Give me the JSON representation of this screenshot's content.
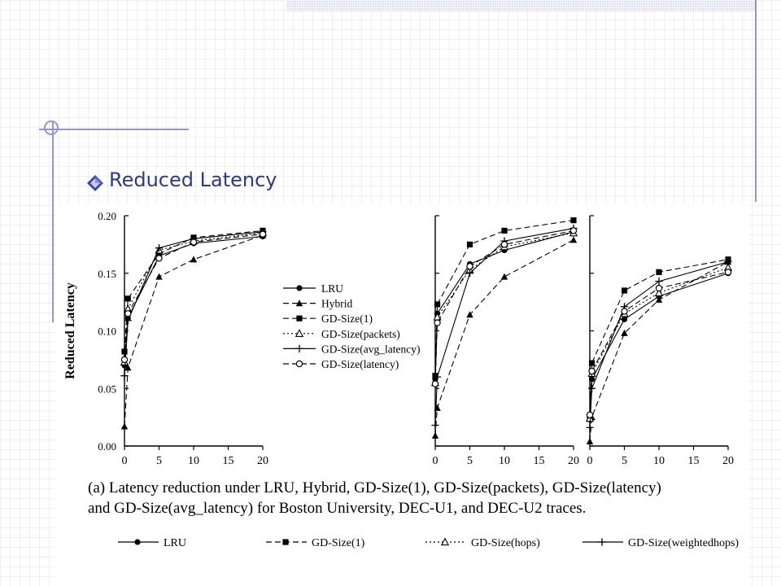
{
  "slide": {
    "title": "Reduced Latency"
  },
  "caption": {
    "line1": "(a) Latency reduction under LRU, Hybrid, GD-Size(1), GD-Size(packets), GD-Size(latency)",
    "line2": "and GD-Size(avg_latency) for Boston University, DEC-U1, and DEC-U2 traces."
  },
  "legend_main": [
    {
      "name": "LRU",
      "marker": "filled-circle",
      "dash": "solid"
    },
    {
      "name": "Hybrid",
      "marker": "filled-triangle",
      "dash": "dashed"
    },
    {
      "name": "GD-Size(1)",
      "marker": "filled-square",
      "dash": "dashed"
    },
    {
      "name": "GD-Size(packets)",
      "marker": "open-triangle",
      "dash": "dotted"
    },
    {
      "name": "GD-Size(avg_latency)",
      "marker": "plus",
      "dash": "solid"
    },
    {
      "name": "GD-Size(latency)",
      "marker": "open-circle",
      "dash": "dashed"
    }
  ],
  "legend_bottom": [
    {
      "name": "LRU",
      "marker": "filled-circle",
      "dash": "solid"
    },
    {
      "name": "GD-Size(1)",
      "marker": "filled-square",
      "dash": "dashed"
    },
    {
      "name": "GD-Size(hops)",
      "marker": "open-triangle",
      "dash": "dotted"
    },
    {
      "name": "GD-Size(weightedhops)",
      "marker": "plus",
      "dash": "solid"
    }
  ],
  "chart_data": [
    {
      "type": "line",
      "ylabel": "Reduced Latency",
      "xlabel": "",
      "xlim": [
        0,
        20
      ],
      "ylim": [
        0,
        0.2
      ],
      "xticks": [
        "0",
        "5",
        "10",
        "15",
        "20"
      ],
      "yticks": [
        "0.00",
        "0.05",
        "0.10",
        "0.15",
        "0.20"
      ],
      "series": [
        {
          "name": "LRU",
          "x": [
            0,
            0.5,
            5,
            10,
            20
          ],
          "y": [
            0.07,
            0.111,
            0.165,
            0.176,
            0.182
          ]
        },
        {
          "name": "Hybrid",
          "x": [
            0,
            0.5,
            5,
            10,
            20
          ],
          "y": [
            0.017,
            0.068,
            0.147,
            0.162,
            0.183
          ]
        },
        {
          "name": "GD-Size(1)",
          "x": [
            0,
            0.5,
            5,
            10,
            20
          ],
          "y": [
            0.082,
            0.128,
            0.167,
            0.181,
            0.187
          ]
        },
        {
          "name": "GD-Size(packets)",
          "x": [
            0,
            0.5,
            5,
            10,
            20
          ],
          "y": [
            0.073,
            0.119,
            0.17,
            0.178,
            0.185
          ]
        },
        {
          "name": "GD-Size(avg_latency)",
          "x": [
            0,
            0.5,
            5,
            10,
            20
          ],
          "y": [
            0.061,
            0.109,
            0.172,
            0.18,
            0.186
          ]
        },
        {
          "name": "GD-Size(latency)",
          "x": [
            0,
            0.5,
            5,
            10,
            20
          ],
          "y": [
            0.075,
            0.115,
            0.163,
            0.177,
            0.184
          ]
        }
      ]
    },
    {
      "type": "line",
      "xlim": [
        0,
        20
      ],
      "ylim": [
        0,
        0.2
      ],
      "xticks": [
        "0",
        "5",
        "10",
        "15",
        "20"
      ],
      "series": [
        {
          "name": "LRU",
          "x": [
            0,
            0.3,
            5,
            10,
            20
          ],
          "y": [
            0.058,
            0.115,
            0.158,
            0.17,
            0.186
          ]
        },
        {
          "name": "Hybrid",
          "x": [
            0,
            0.3,
            5,
            10,
            20
          ],
          "y": [
            0.009,
            0.033,
            0.114,
            0.147,
            0.179
          ]
        },
        {
          "name": "GD-Size(1)",
          "x": [
            0,
            0.3,
            5,
            10,
            20
          ],
          "y": [
            0.061,
            0.123,
            0.175,
            0.187,
            0.196
          ]
        },
        {
          "name": "GD-Size(packets)",
          "x": [
            0,
            0.3,
            5,
            10,
            20
          ],
          "y": [
            0.055,
            0.112,
            0.153,
            0.173,
            0.185
          ]
        },
        {
          "name": "GD-Size(avg_latency)",
          "x": [
            0,
            0.3,
            5,
            10,
            20
          ],
          "y": [
            0.018,
            0.06,
            0.15,
            0.178,
            0.189
          ]
        },
        {
          "name": "GD-Size(latency)",
          "x": [
            0,
            0.3,
            5,
            10,
            20
          ],
          "y": [
            0.054,
            0.107,
            0.156,
            0.175,
            0.187
          ]
        }
      ]
    },
    {
      "type": "line",
      "xlim": [
        0,
        20
      ],
      "ylim": [
        0,
        0.2
      ],
      "xticks": [
        "0",
        "5",
        "10",
        "15",
        "20"
      ],
      "series": [
        {
          "name": "LRU",
          "x": [
            0,
            0.3,
            5,
            10,
            20
          ],
          "y": [
            0.023,
            0.058,
            0.11,
            0.13,
            0.15
          ]
        },
        {
          "name": "Hybrid",
          "x": [
            0,
            0.3,
            5,
            10,
            20
          ],
          "y": [
            0.004,
            0.025,
            0.098,
            0.127,
            0.16
          ]
        },
        {
          "name": "GD-Size(1)",
          "x": [
            0,
            0.3,
            5,
            10,
            20
          ],
          "y": [
            0.026,
            0.072,
            0.135,
            0.151,
            0.162
          ]
        },
        {
          "name": "GD-Size(packets)",
          "x": [
            0,
            0.3,
            5,
            10,
            20
          ],
          "y": [
            0.024,
            0.063,
            0.115,
            0.133,
            0.155
          ]
        },
        {
          "name": "GD-Size(avg_latency)",
          "x": [
            0,
            0.3,
            5,
            10,
            20
          ],
          "y": [
            0.016,
            0.05,
            0.121,
            0.143,
            0.16
          ]
        },
        {
          "name": "GD-Size(latency)",
          "x": [
            0,
            0.3,
            5,
            10,
            20
          ],
          "y": [
            0.027,
            0.065,
            0.117,
            0.137,
            0.151
          ]
        }
      ]
    }
  ]
}
